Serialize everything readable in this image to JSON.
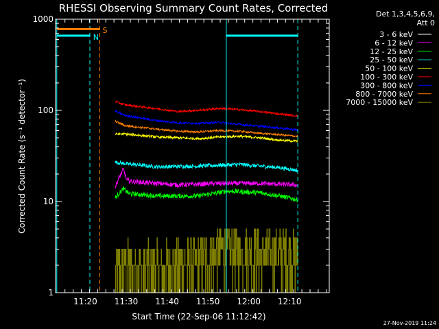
{
  "chart_data": {
    "type": "line",
    "title": "RHESSI Observing Summary Count Rates, Corrected",
    "xlabel": "Start Time (22-Sep-06 11:12:42)",
    "ylabel": "Corrected Count Rate (s⁻¹ detector⁻¹)",
    "yscale": "log",
    "ylim": [
      1,
      1000
    ],
    "xlim_minutes": [
      0,
      67
    ],
    "x_unit": "minutes after 11:12:42",
    "x_ticks": [
      {
        "t": 7.3,
        "label": "11:20"
      },
      {
        "t": 17.3,
        "label": "11:30"
      },
      {
        "t": 27.3,
        "label": "11:40"
      },
      {
        "t": 37.3,
        "label": "11:50"
      },
      {
        "t": 47.3,
        "label": "12:00"
      },
      {
        "t": 57.3,
        "label": "12:10"
      }
    ],
    "y_ticks": [
      {
        "v": 1,
        "label": "1"
      },
      {
        "v": 10,
        "label": "10"
      },
      {
        "v": 100,
        "label": "100"
      },
      {
        "v": 1000,
        "label": "1000"
      }
    ],
    "legend_header": [
      "Det 1,3,4,5,6,9,",
      "Att 0"
    ],
    "series": [
      {
        "name": "3 - 6 keV",
        "color": "#ffffff",
        "level": 4.2,
        "noise": 0.28,
        "points": [
          [
            14.6,
            1.3
          ],
          [
            15.2,
            2.6
          ],
          [
            16.0,
            5.5
          ],
          [
            17.0,
            11.5
          ],
          [
            17.6,
            8.0
          ],
          [
            18.5,
            4.8
          ],
          [
            20,
            4.4
          ],
          [
            30,
            3.8
          ],
          [
            37,
            4.2
          ],
          [
            40,
            5.0
          ],
          [
            47,
            5.0
          ],
          [
            52,
            4.3
          ],
          [
            59,
            4.3
          ]
        ]
      },
      {
        "name": "6 - 12 keV",
        "color": "#ff00ff",
        "level": 15.5,
        "noise": 0.06,
        "points": [
          [
            14.6,
            14.5
          ],
          [
            15.5,
            18
          ],
          [
            16.6,
            22.5
          ],
          [
            17.5,
            17
          ],
          [
            19,
            16.5
          ],
          [
            30,
            15.2
          ],
          [
            40,
            15.8
          ],
          [
            50,
            15.8
          ],
          [
            59,
            15.2
          ]
        ]
      },
      {
        "name": "12 - 25 keV",
        "color": "#00ff00",
        "level": 11.5,
        "noise": 0.06,
        "points": [
          [
            14.6,
            11
          ],
          [
            16.6,
            13.8
          ],
          [
            18,
            12.2
          ],
          [
            25,
            11.5
          ],
          [
            35,
            11.5
          ],
          [
            42,
            13
          ],
          [
            50,
            12.5
          ],
          [
            55,
            11.5
          ],
          [
            59,
            10.5
          ]
        ]
      },
      {
        "name": "25 - 50 keV",
        "color": "#00ffff",
        "level": 25,
        "noise": 0.05,
        "points": [
          [
            14.6,
            27
          ],
          [
            17,
            26
          ],
          [
            25,
            24
          ],
          [
            35,
            24.5
          ],
          [
            45,
            25.5
          ],
          [
            55,
            23.5
          ],
          [
            59,
            22
          ]
        ]
      },
      {
        "name": "50 - 100 keV",
        "color": "#ffff00",
        "level": 52,
        "noise": 0.03,
        "points": [
          [
            14.6,
            55
          ],
          [
            17,
            55
          ],
          [
            25,
            51
          ],
          [
            35,
            49
          ],
          [
            40,
            51
          ],
          [
            45,
            52
          ],
          [
            50,
            50
          ],
          [
            55,
            47
          ],
          [
            59,
            46
          ]
        ]
      },
      {
        "name": "100 - 300 keV",
        "color": "#ff0000",
        "level": 110,
        "noise": 0.025,
        "points": [
          [
            14.6,
            125
          ],
          [
            17,
            115
          ],
          [
            25,
            104
          ],
          [
            30,
            97
          ],
          [
            35,
            100
          ],
          [
            40,
            105
          ],
          [
            45,
            102
          ],
          [
            50,
            97
          ],
          [
            55,
            91
          ],
          [
            59,
            87
          ]
        ]
      },
      {
        "name": "300 - 800 keV",
        "color": "#0000ff",
        "level": 80,
        "noise": 0.025,
        "points": [
          [
            14.6,
            98
          ],
          [
            17,
            88
          ],
          [
            25,
            77
          ],
          [
            30,
            73
          ],
          [
            35,
            72
          ],
          [
            40,
            74
          ],
          [
            45,
            70
          ],
          [
            50,
            67
          ],
          [
            55,
            64
          ],
          [
            59,
            61
          ]
        ]
      },
      {
        "name": "800 - 7000 keV",
        "color": "#ff8000",
        "level": 63,
        "noise": 0.025,
        "points": [
          [
            14.6,
            76
          ],
          [
            17,
            68
          ],
          [
            25,
            62
          ],
          [
            30,
            59
          ],
          [
            35,
            58
          ],
          [
            40,
            60
          ],
          [
            45,
            59
          ],
          [
            50,
            56
          ],
          [
            55,
            54
          ],
          [
            59,
            52
          ]
        ]
      },
      {
        "name": "7000 - 15000 keV",
        "color": "#808000",
        "level": 2.5,
        "noise": 0.35,
        "points": [
          [
            14.6,
            1.5
          ],
          [
            16,
            1.8
          ],
          [
            18,
            1.9
          ],
          [
            25,
            1.8
          ],
          [
            35,
            2.0
          ],
          [
            40,
            2.8
          ],
          [
            50,
            2.6
          ],
          [
            59,
            2.5
          ]
        ]
      }
    ],
    "annotations": [
      {
        "text": "S",
        "color": "#ff8000"
      },
      {
        "text": "N",
        "color": "#00ffff"
      }
    ],
    "flag_bars": [
      {
        "color": "#ff8000",
        "t0": 0.3,
        "t1": 10.8,
        "v": 780
      },
      {
        "color": "#00ffff",
        "t0": 0.3,
        "t1": 8.4,
        "v": 660
      },
      {
        "color": "#00ffff",
        "t0": 41.8,
        "t1": 59.3,
        "v": 660
      }
    ],
    "markers": [
      {
        "t": 0.3,
        "color": "#00ffff",
        "style": "solid"
      },
      {
        "t": 8.4,
        "color": "#00ffff",
        "style": "dashed"
      },
      {
        "t": 10.8,
        "color": "#ff8000",
        "style": "dashed"
      },
      {
        "t": 41.8,
        "color": "#00ffff",
        "style": "solid"
      },
      {
        "t": 59.3,
        "color": "#00ffff",
        "style": "dashed"
      }
    ],
    "data_start_minute": 14.6,
    "data_end_minute": 59.3
  },
  "footer": {
    "timestamp": "27-Nov-2019 11:24"
  }
}
